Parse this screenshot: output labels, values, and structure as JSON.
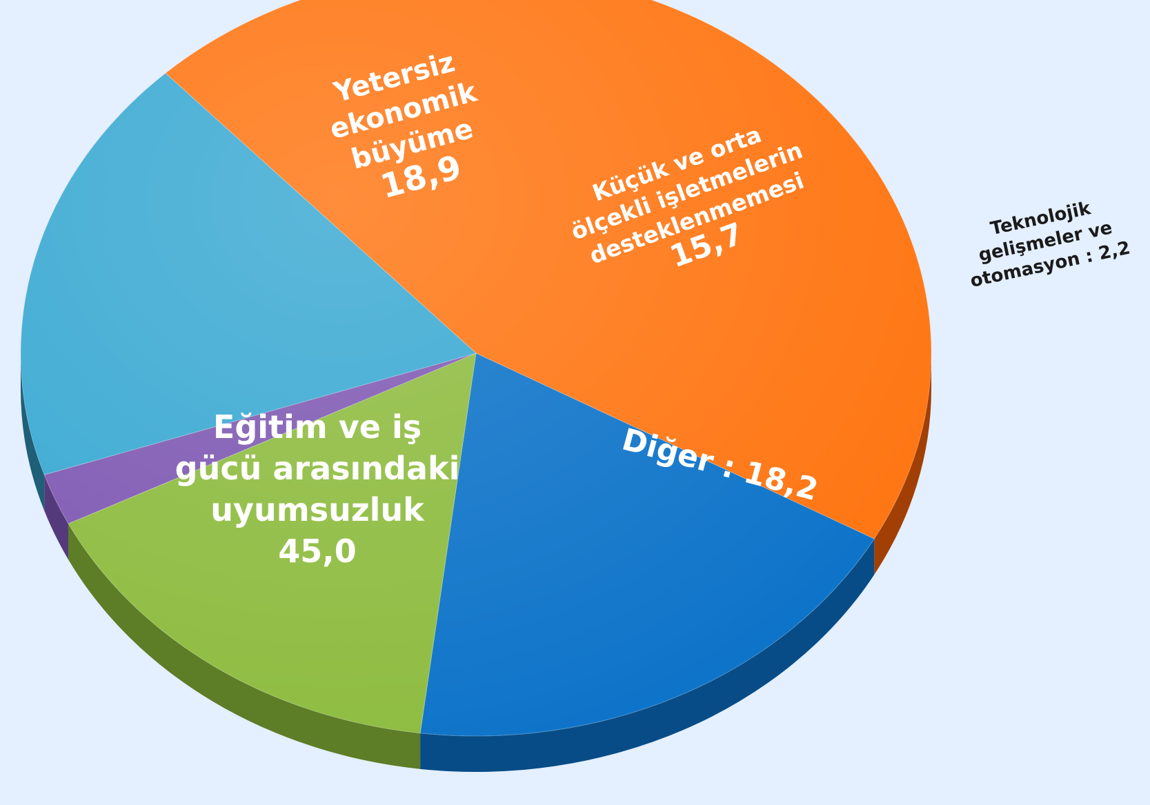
{
  "chart_data": {
    "type": "pie",
    "title": "",
    "slices": [
      {
        "label_lines": [
          "Eğitim ve iş",
          "gücü arasındaki",
          "uyumsuzluk"
        ],
        "value": 45.0,
        "value_text": "45,0",
        "color": "#ff7410",
        "side_color": "#a13f05"
      },
      {
        "label_lines": [
          "Yetersiz",
          "ekonomik",
          "büyüme"
        ],
        "value": 18.9,
        "value_text": "18,9",
        "color": "#0b72c8",
        "side_color": "#074c86"
      },
      {
        "label_lines": [
          "Küçük ve orta",
          "ölçekli işletmelerin",
          "desteklenmemesi"
        ],
        "value": 15.7,
        "value_text": "15,7",
        "color": "#8dbb3e",
        "side_color": "#5d7d27"
      },
      {
        "label_lines": [
          "Teknolojik",
          "gelişmeler ve",
          "otomasyon : 2,2"
        ],
        "value": 2.2,
        "value_text": "2,2",
        "color": "#7e58b2",
        "side_color": "#553a7b"
      },
      {
        "label_lines": [
          "Diğer : 18,2"
        ],
        "value": 18.2,
        "value_text": "18,2",
        "color": "#38a8d2",
        "side_color": "#1f5f78"
      }
    ],
    "colors": {
      "background": "#e4efff"
    }
  }
}
